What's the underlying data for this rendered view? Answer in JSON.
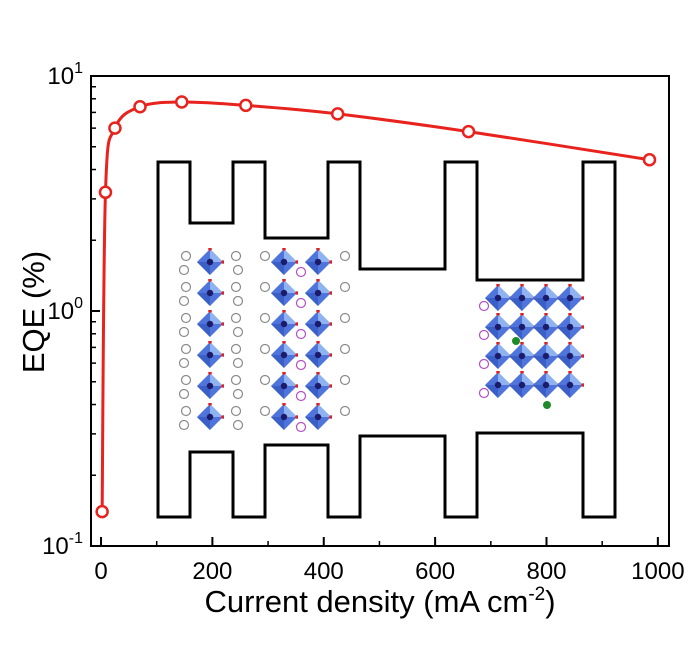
{
  "chart_data": {
    "type": "line",
    "title": "",
    "xlabel": "Current density (mA cm",
    "xlabel_sup": "-2",
    "xlabel_close": ")",
    "ylabel": "EQE (%)",
    "x_ticks": [
      "0",
      "200",
      "400",
      "600",
      "800",
      "1000"
    ],
    "x_tick_values": [
      0,
      200,
      400,
      600,
      800,
      1000
    ],
    "y_ticks": [
      {
        "base": "10",
        "exp": "1",
        "value": 10
      },
      {
        "base": "10",
        "exp": "0",
        "value": 1
      },
      {
        "base": "10",
        "exp": "-1",
        "value": 0.1
      }
    ],
    "xlim": [
      -18,
      1020
    ],
    "ylim": [
      0.1,
      10
    ],
    "y_scale": "log",
    "grid": false,
    "series": [
      {
        "color": "#e8231e",
        "x": [
          2,
          8,
          25,
          70,
          145,
          260,
          425,
          660,
          985
        ],
        "y": [
          0.14,
          3.2,
          6.0,
          7.4,
          7.75,
          7.5,
          6.9,
          5.8,
          4.4
        ]
      }
    ],
    "inset": {
      "description": "device/crystal structure illustration",
      "outline_color": "#000000",
      "octahedra_color": "#5b87e0"
    }
  }
}
